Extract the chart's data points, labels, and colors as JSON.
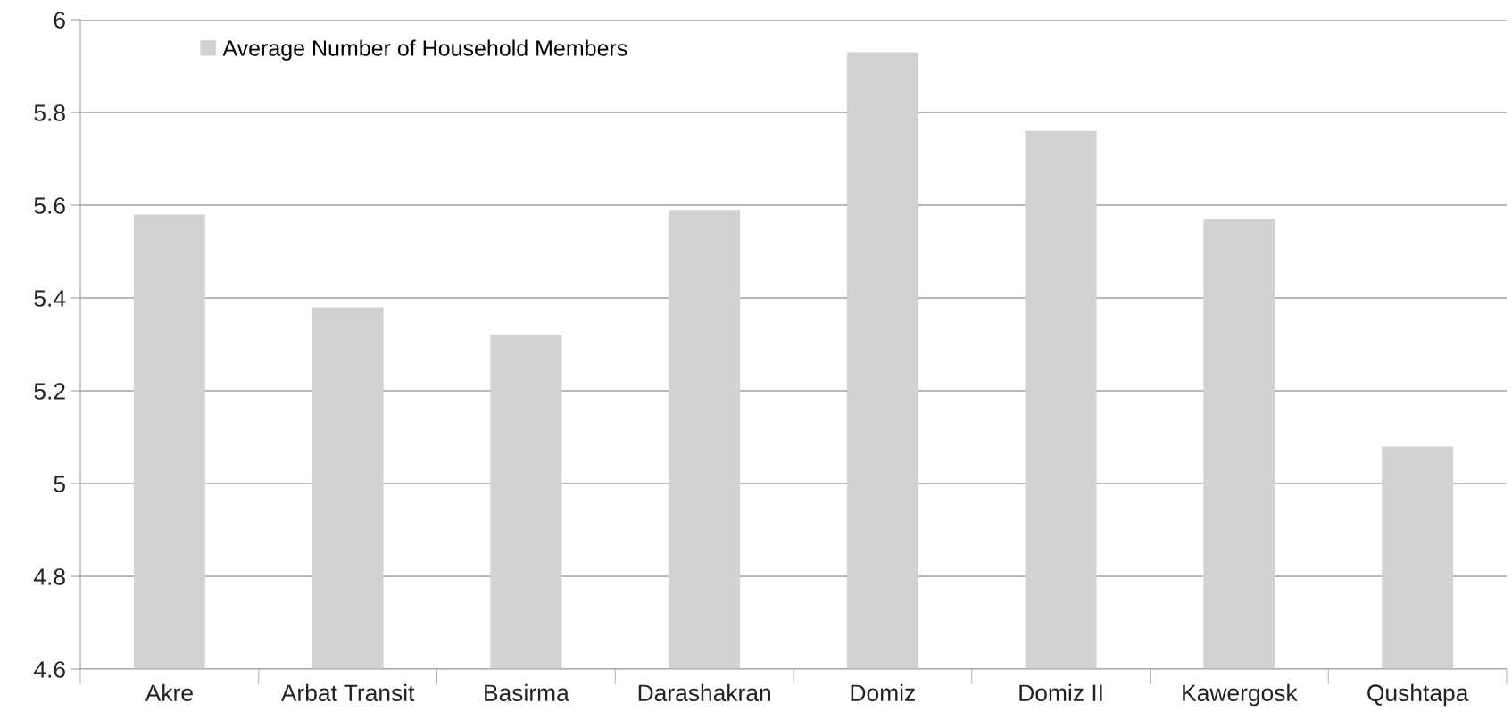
{
  "chart_data": {
    "type": "bar",
    "categories": [
      "Akre",
      "Arbat Transit",
      "Basirma",
      "Darashakran",
      "Domiz",
      "Domiz II",
      "Kawergosk",
      "Qushtapa"
    ],
    "series": [
      {
        "name": "Average Number of Household Members",
        "color": "#d1d2d4",
        "values": [
          5.58,
          5.38,
          5.32,
          5.59,
          5.93,
          5.76,
          5.57,
          5.08
        ]
      }
    ],
    "ylim": [
      4.6,
      6
    ],
    "yticks": [
      4.6,
      4.8,
      5,
      5.2,
      5.4,
      5.6,
      5.8,
      6
    ],
    "grid": "y",
    "legend": "top left"
  }
}
